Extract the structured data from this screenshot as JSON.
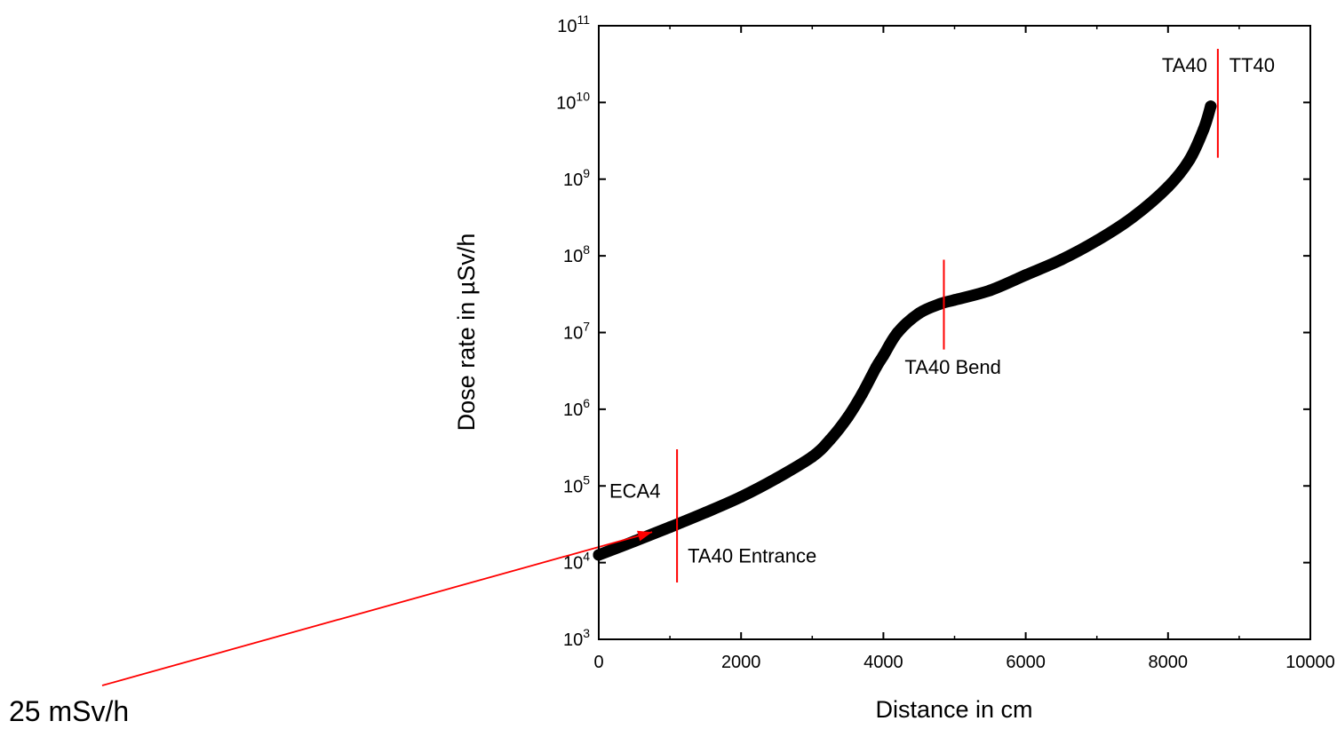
{
  "chart_data": {
    "type": "scatter",
    "title": "",
    "xlabel": "Distance in cm",
    "ylabel": "Dose rate in µSv/h",
    "xlim": [
      0,
      10000
    ],
    "ylim": [
      1000,
      100000000000
    ],
    "yscale": "log",
    "grid": false,
    "x_ticks": [
      {
        "value": 0,
        "label": "0"
      },
      {
        "value": 2000,
        "label": "2000"
      },
      {
        "value": 4000,
        "label": "4000"
      },
      {
        "value": 6000,
        "label": "6000"
      },
      {
        "value": 8000,
        "label": "8000"
      },
      {
        "value": 10000,
        "label": "10000"
      }
    ],
    "y_ticks": [
      {
        "value": 1000,
        "base": "10",
        "exp": "3"
      },
      {
        "value": 10000,
        "base": "10",
        "exp": "4"
      },
      {
        "value": 100000,
        "base": "10",
        "exp": "5"
      },
      {
        "value": 1000000,
        "base": "10",
        "exp": "6"
      },
      {
        "value": 10000000,
        "base": "10",
        "exp": "7"
      },
      {
        "value": 100000000,
        "base": "10",
        "exp": "8"
      },
      {
        "value": 1000000000,
        "base": "10",
        "exp": "9"
      },
      {
        "value": 10000000000,
        "base": "10",
        "exp": "10"
      },
      {
        "value": 100000000000,
        "base": "10",
        "exp": "11"
      }
    ],
    "series": [
      {
        "color": "#000000",
        "x": [
          0,
          500,
          1000,
          1500,
          2000,
          2500,
          3000,
          3250,
          3500,
          3700,
          3900,
          4000,
          4200,
          4500,
          4800,
          5000,
          5500,
          6000,
          6500,
          7000,
          7500,
          8000,
          8300,
          8500,
          8600
        ],
        "y": [
          12600,
          19000,
          29000,
          45000,
          72000,
          126000,
          240000,
          400000,
          790000,
          1580000,
          3550000,
          5000000,
          10000000,
          17800000,
          23700000,
          26600000,
          35500000,
          56200000,
          89100000,
          158000000,
          316000000,
          794000000,
          1780000000,
          4470000000,
          8910000000
        ]
      }
    ],
    "markers": [
      {
        "x": 1100,
        "y_from": 5500,
        "y_to": 300000,
        "color": "#ff0000",
        "labels": [
          {
            "text": "ECA4",
            "x": 150,
            "y": 70000,
            "anchor": "start"
          },
          {
            "text": "TA40 Entrance",
            "x": 1250,
            "y": 10000,
            "anchor": "start"
          }
        ]
      },
      {
        "x": 4850,
        "y_from": 6000000,
        "y_to": 89000000,
        "color": "#ff0000",
        "labels": [
          {
            "text": "TA40 Bend",
            "x": 4300,
            "y": 2900000,
            "anchor": "start"
          }
        ]
      },
      {
        "x": 8700,
        "y_from": 1900000000,
        "y_to": 50000000000,
        "color": "#ff0000",
        "labels": [
          {
            "text": "TA40",
            "x": 8550,
            "y": 25000000000,
            "anchor": "end"
          },
          {
            "text": "TT40",
            "x": 8860,
            "y": 25000000000,
            "anchor": "start"
          }
        ]
      }
    ],
    "annotation_arrow": {
      "text": "25 mSv/h",
      "target_x": 750,
      "target_y": 25000,
      "color": "#ff0000"
    }
  }
}
